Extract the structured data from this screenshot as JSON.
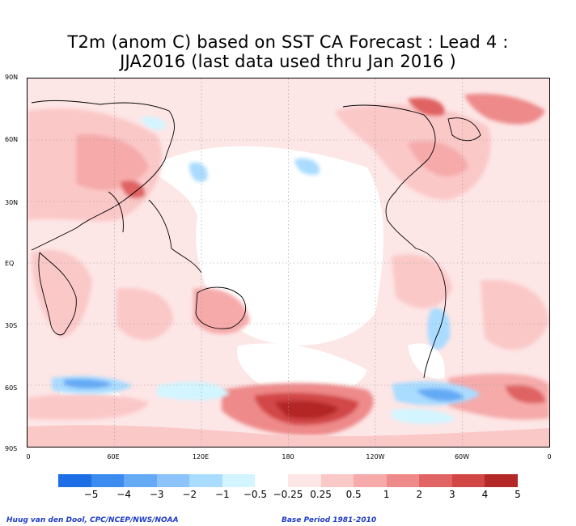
{
  "title_line1": "T2m (anom C) based on SST CA Forecast : Lead 4 :",
  "title_line2": "JJA2016 (last data used thru Jan 2016 )",
  "y_tick_labels": [
    "90N",
    "60N",
    "30N",
    "EQ",
    "30S",
    "60S",
    "90S"
  ],
  "x_tick_labels": [
    "0",
    "60E",
    "120E",
    "180",
    "120W",
    "60W",
    "0"
  ],
  "colorbar": {
    "colors": [
      "#1e6ee6",
      "#3c8cf0",
      "#64aaf5",
      "#8cc3fa",
      "#aadcff",
      "#d2f5ff",
      "#ffffff",
      "#fde6e6",
      "#fbc8c8",
      "#f6aaaa",
      "#ee8a8a",
      "#e06464",
      "#d24646",
      "#b42828"
    ],
    "labels": [
      "−5",
      "−4",
      "−3",
      "−2",
      "−1",
      "−0.5",
      "−0.25",
      "0.25",
      "0.5",
      "1",
      "2",
      "3",
      "4",
      "5"
    ]
  },
  "credit_left": "Huug van den Dool, CPC/NCEP/NWS/NOAA",
  "credit_right": "Base Period 1981-2010"
}
